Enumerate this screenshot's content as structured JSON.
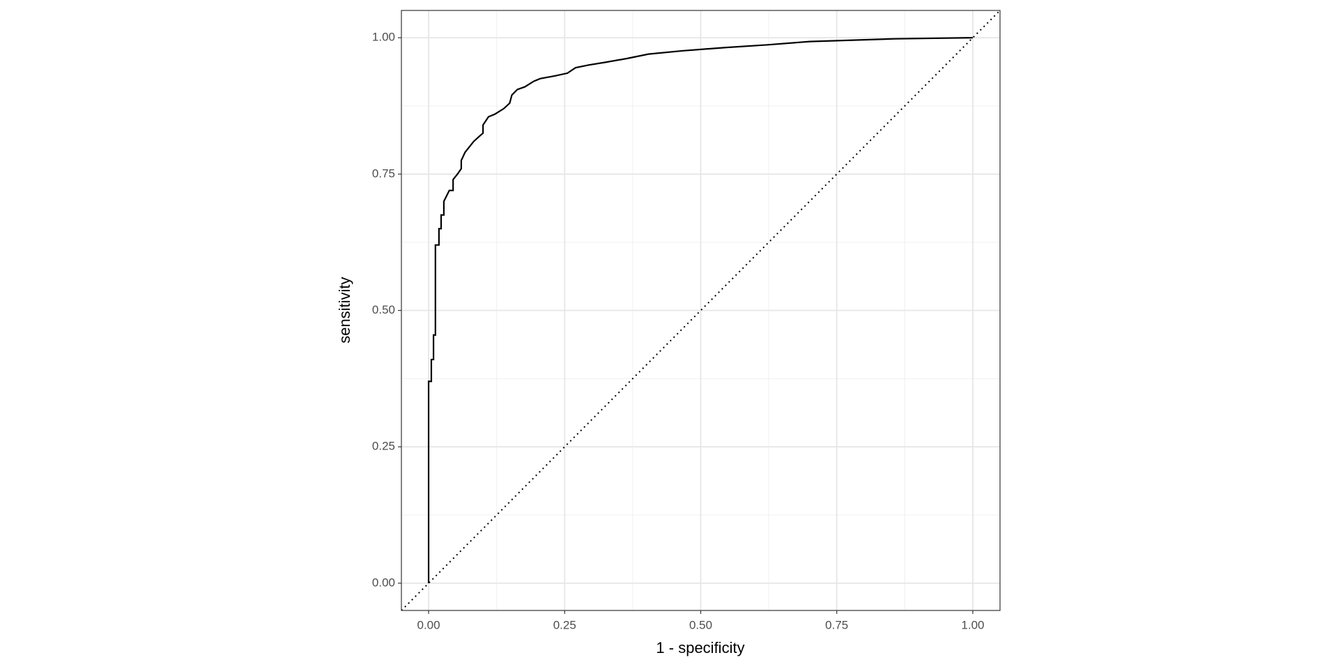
{
  "chart_data": {
    "type": "line",
    "xlabel": "1 - specificity",
    "ylabel": "sensitivity",
    "x": [
      0,
      0,
      0.005,
      0.005,
      0.009,
      0.009,
      0.0125,
      0.0125,
      0.019,
      0.019,
      0.023,
      0.023,
      0.028,
      0.028,
      0.038,
      0.045,
      0.045,
      0.053,
      0.06,
      0.06,
      0.067,
      0.075,
      0.083,
      0.094,
      0.1,
      0.1,
      0.11,
      0.122,
      0.138,
      0.149,
      0.153,
      0.163,
      0.177,
      0.193,
      0.205,
      0.232,
      0.255,
      0.27,
      0.294,
      0.325,
      0.365,
      0.404,
      0.466,
      0.545,
      0.623,
      0.7,
      0.857,
      1
    ],
    "values": [
      0,
      0.37,
      0.37,
      0.41,
      0.41,
      0.455,
      0.455,
      0.62,
      0.62,
      0.65,
      0.65,
      0.675,
      0.675,
      0.7,
      0.72,
      0.72,
      0.74,
      0.75,
      0.76,
      0.775,
      0.79,
      0.8,
      0.81,
      0.82,
      0.825,
      0.84,
      0.855,
      0.86,
      0.87,
      0.88,
      0.895,
      0.905,
      0.91,
      0.92,
      0.925,
      0.93,
      0.935,
      0.945,
      0.95,
      0.955,
      0.962,
      0.97,
      0.976,
      0.982,
      0.987,
      0.993,
      0.998,
      1
    ],
    "color": "#000000",
    "xlim": [
      -0.05,
      1.05
    ],
    "ylim": [
      -0.05,
      1.05
    ],
    "xticks": [
      {
        "value": 0,
        "label": "0.00"
      },
      {
        "value": 0.25,
        "label": "0.25"
      },
      {
        "value": 0.5,
        "label": "0.50"
      },
      {
        "value": 0.75,
        "label": "0.75"
      },
      {
        "value": 1,
        "label": "1.00"
      }
    ],
    "yticks": [
      {
        "value": 0,
        "label": "0.00"
      },
      {
        "value": 0.25,
        "label": "0.25"
      },
      {
        "value": 0.5,
        "label": "0.50"
      },
      {
        "value": 0.75,
        "label": "0.75"
      },
      {
        "value": 1,
        "label": "1.00"
      }
    ],
    "minor_ticks": [
      0.125,
      0.375,
      0.625,
      0.875
    ],
    "grid": true,
    "diagonal": true
  }
}
